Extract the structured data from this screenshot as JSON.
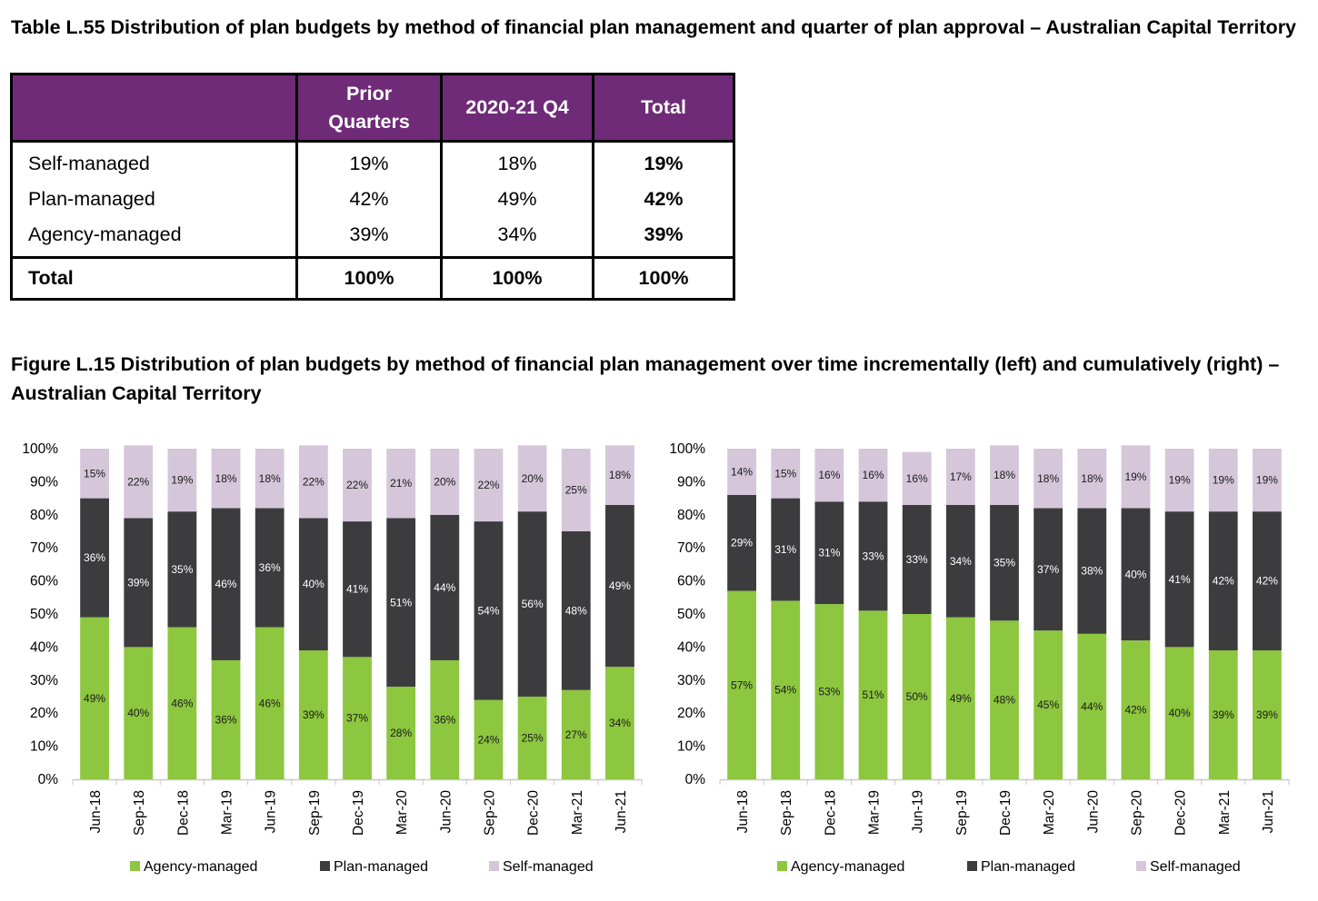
{
  "table": {
    "title": "Table L.55 Distribution of plan budgets by method of financial plan management and quarter of plan approval – Australian Capital Territory",
    "headers": [
      "",
      "Prior Quarters",
      "2020-21 Q4",
      "Total"
    ],
    "rows": [
      {
        "label": "Self-managed",
        "values": [
          "19%",
          "18%",
          "19%"
        ]
      },
      {
        "label": "Plan-managed",
        "values": [
          "42%",
          "49%",
          "42%"
        ]
      },
      {
        "label": "Agency-managed",
        "values": [
          "39%",
          "34%",
          "39%"
        ]
      }
    ],
    "total": {
      "label": "Total",
      "values": [
        "100%",
        "100%",
        "100%"
      ]
    }
  },
  "figure": {
    "title": "Figure L.15 Distribution of plan budgets by method of financial plan management over time incrementally (left) and cumulatively (right) – Australian Capital Territory"
  },
  "colors": {
    "agency": "#8dc63f",
    "plan": "#3c3c3f",
    "self": "#d5c6da",
    "header_bg": "#6f2b77"
  },
  "chart_data": [
    {
      "type": "bar",
      "stacked": true,
      "categories": [
        "Jun-18",
        "Sep-18",
        "Dec-18",
        "Mar-19",
        "Jun-19",
        "Sep-19",
        "Dec-19",
        "Mar-20",
        "Jun-20",
        "Sep-20",
        "Dec-20",
        "Mar-21",
        "Jun-21"
      ],
      "series": [
        {
          "name": "Agency-managed",
          "values": [
            49,
            40,
            46,
            36,
            46,
            39,
            37,
            28,
            36,
            24,
            25,
            27,
            34
          ],
          "color": "#8dc63f"
        },
        {
          "name": "Plan-managed",
          "values": [
            36,
            39,
            35,
            46,
            36,
            40,
            41,
            51,
            44,
            54,
            56,
            48,
            49
          ],
          "color": "#3c3c3f"
        },
        {
          "name": "Self-managed",
          "values": [
            15,
            22,
            19,
            18,
            18,
            22,
            22,
            21,
            20,
            22,
            20,
            25,
            18
          ],
          "color": "#d5c6da"
        }
      ],
      "yticks": [
        "0%",
        "10%",
        "20%",
        "30%",
        "40%",
        "50%",
        "60%",
        "70%",
        "80%",
        "90%",
        "100%"
      ],
      "ylim": [
        0,
        100
      ],
      "legend": "bottom"
    },
    {
      "type": "bar",
      "stacked": true,
      "categories": [
        "Jun-18",
        "Sep-18",
        "Dec-18",
        "Mar-19",
        "Jun-19",
        "Sep-19",
        "Dec-19",
        "Mar-20",
        "Jun-20",
        "Sep-20",
        "Dec-20",
        "Mar-21",
        "Jun-21"
      ],
      "series": [
        {
          "name": "Agency-managed",
          "values": [
            57,
            54,
            53,
            51,
            50,
            49,
            48,
            45,
            44,
            42,
            40,
            39,
            39
          ],
          "color": "#8dc63f"
        },
        {
          "name": "Plan-managed",
          "values": [
            29,
            31,
            31,
            33,
            33,
            34,
            35,
            37,
            38,
            40,
            41,
            42,
            42
          ],
          "color": "#3c3c3f"
        },
        {
          "name": "Self-managed",
          "values": [
            14,
            15,
            16,
            16,
            16,
            17,
            18,
            18,
            18,
            19,
            19,
            19,
            19
          ],
          "color": "#d5c6da"
        }
      ],
      "yticks": [
        "0%",
        "10%",
        "20%",
        "30%",
        "40%",
        "50%",
        "60%",
        "70%",
        "80%",
        "90%",
        "100%"
      ],
      "ylim": [
        0,
        100
      ],
      "legend": "bottom"
    }
  ]
}
